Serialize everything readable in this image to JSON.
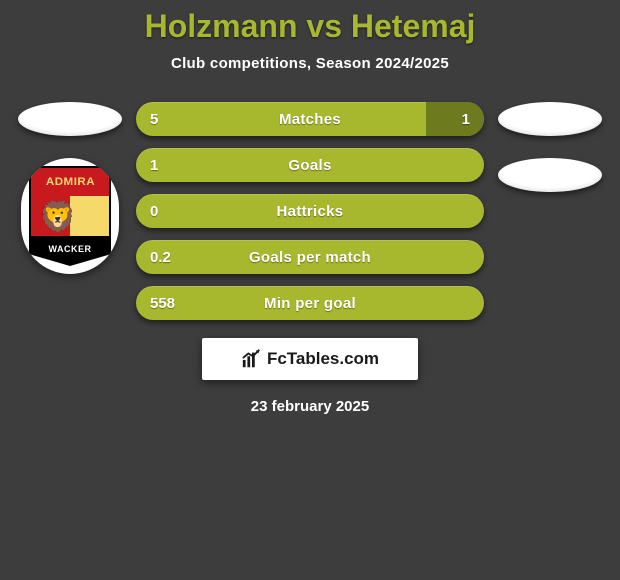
{
  "title": "Holzmann vs Hetemaj",
  "subtitle": "Club competitions, Season 2024/2025",
  "date": "23 february 2025",
  "brand": {
    "text": "FcTables.com"
  },
  "colors": {
    "background": "#3d3d3d",
    "accent": "#a8b82e",
    "accent_dark": "#6d7a1e",
    "text": "#ffffff"
  },
  "left_club": {
    "badge_top": "ADMIRA",
    "badge_bottom": "WACKER",
    "shield_colors": {
      "red": "#c8191e",
      "gold": "#f5d96b",
      "black": "#000000"
    }
  },
  "bars": [
    {
      "label": "Matches",
      "left": "5",
      "right": "1",
      "right_pct": 16.7,
      "show_right": true
    },
    {
      "label": "Goals",
      "left": "1",
      "right": "",
      "right_pct": 0,
      "show_right": false
    },
    {
      "label": "Hattricks",
      "left": "0",
      "right": "",
      "right_pct": 0,
      "show_right": false
    },
    {
      "label": "Goals per match",
      "left": "0.2",
      "right": "",
      "right_pct": 0,
      "show_right": false
    },
    {
      "label": "Min per goal",
      "left": "558",
      "right": "",
      "right_pct": 0,
      "show_right": false
    }
  ]
}
